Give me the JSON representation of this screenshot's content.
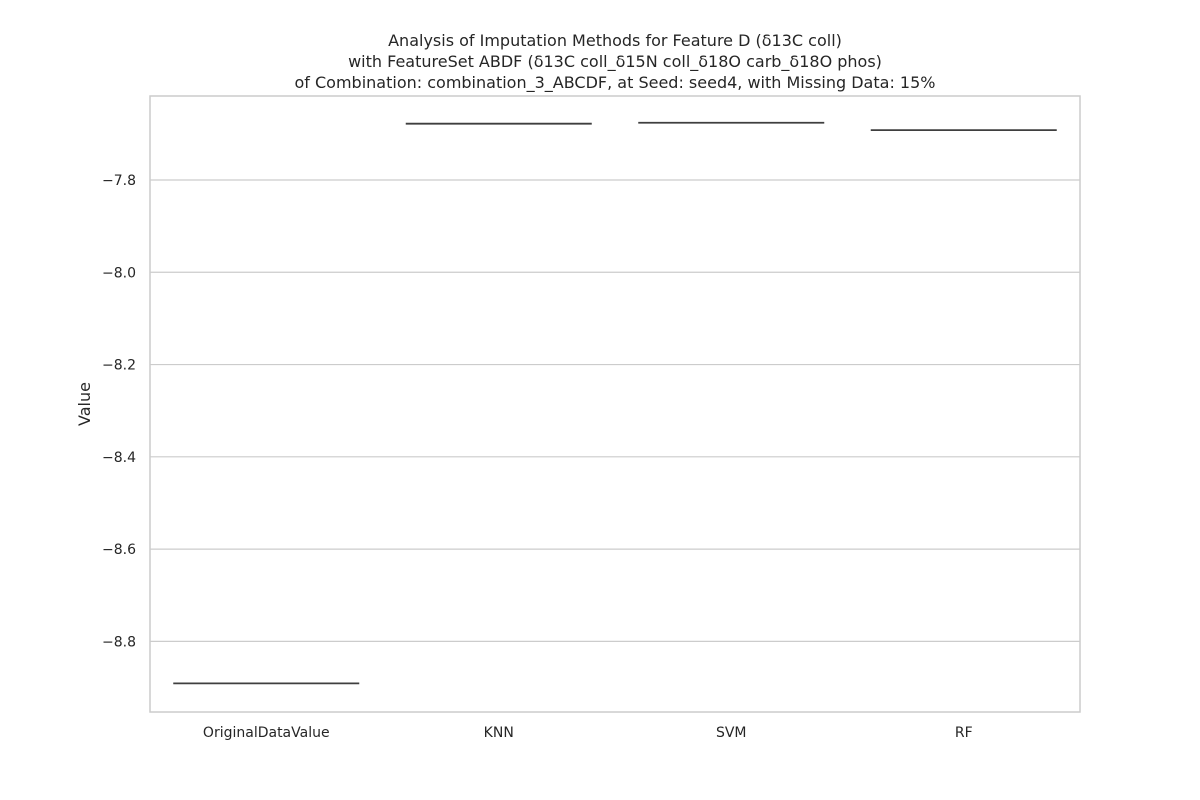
{
  "chart_data": {
    "type": "box",
    "title": [
      "Analysis of Imputation Methods for Feature D (δ13C coll)",
      "with FeatureSet ABDF (δ13C coll_δ15N coll_δ18O carb_δ18O phos)",
      "of Combination: combination_3_ABCDF, at Seed: seed4, with Missing Data: 15%"
    ],
    "xlabel": "",
    "ylabel": "Value",
    "categories": [
      "OriginalDataValue",
      "KNN",
      "SVM",
      "RF"
    ],
    "values": [
      -8.891,
      -7.678,
      -7.676,
      -7.692
    ],
    "ylim": [
      -8.953,
      -7.618
    ],
    "yticks": [
      -8.8,
      -8.6,
      -8.4,
      -8.2,
      -8.0,
      -7.8
    ],
    "ytick_labels": [
      "−8.8",
      "−8.6",
      "−8.4",
      "−8.2",
      "−8.0",
      "−7.8"
    ],
    "grid": true,
    "colors": {
      "grid": "#cccccc",
      "box_line": "#3f3f3f",
      "text": "#262626"
    }
  }
}
